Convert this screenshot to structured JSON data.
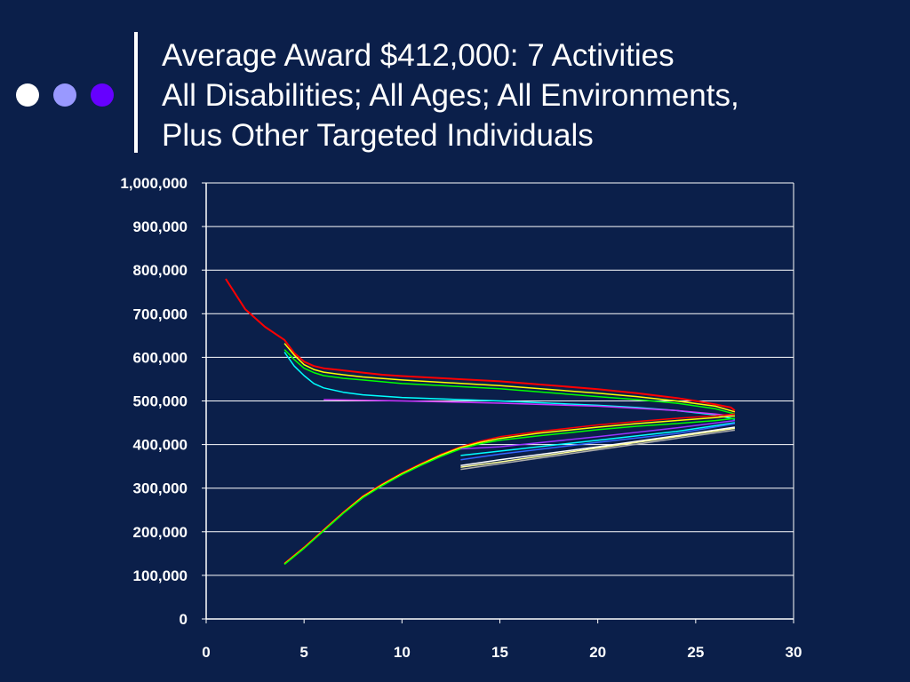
{
  "slide": {
    "title_lines": [
      "Average Award $412,000: 7 Activities",
      "All Disabilities; All Ages; All Environments,",
      "Plus Other Targeted Individuals"
    ],
    "bullet_colors": [
      "#ffffff",
      "#9999ff",
      "#6600ff"
    ],
    "background": "#0b1f4a"
  },
  "chart_data": {
    "type": "line",
    "title": "",
    "xlabel": "",
    "ylabel": "",
    "xlim": [
      0,
      30
    ],
    "ylim": [
      0,
      1000000
    ],
    "xticks": [
      0,
      5,
      10,
      15,
      20,
      25,
      30
    ],
    "yticks": [
      0,
      100000,
      200000,
      300000,
      400000,
      500000,
      600000,
      700000,
      800000,
      900000,
      1000000
    ],
    "xtick_labels": [
      "0",
      "5",
      "10",
      "15",
      "20",
      "25",
      "30"
    ],
    "ytick_labels": [
      "0",
      "100,000",
      "200,000",
      "300,000",
      "400,000",
      "500,000",
      "600,000",
      "700,000",
      "800,000",
      "900,000",
      "1,000,000"
    ],
    "grid": {
      "horizontal": true,
      "vertical": false,
      "color": "#ffffff"
    },
    "legend": "none",
    "series": [
      {
        "color": "#ff0000",
        "points": [
          [
            1,
            780000
          ],
          [
            2,
            710000
          ],
          [
            3,
            670000
          ],
          [
            4,
            640000
          ],
          [
            4.5,
            610000
          ],
          [
            5,
            590000
          ],
          [
            5.5,
            580000
          ],
          [
            6,
            575000
          ],
          [
            7,
            570000
          ],
          [
            8,
            565000
          ],
          [
            9,
            560000
          ],
          [
            10,
            557000
          ],
          [
            15,
            545000
          ],
          [
            20,
            527000
          ],
          [
            22,
            518000
          ],
          [
            24,
            507000
          ],
          [
            25,
            500000
          ],
          [
            26,
            492000
          ],
          [
            26.8,
            485000
          ],
          [
            27,
            478000
          ]
        ]
      },
      {
        "color": "#ffff00",
        "points": [
          [
            4,
            632000
          ],
          [
            4.5,
            605000
          ],
          [
            5,
            583000
          ],
          [
            5.5,
            572000
          ],
          [
            6,
            566000
          ],
          [
            7,
            560000
          ],
          [
            8,
            555000
          ],
          [
            10,
            548000
          ],
          [
            15,
            535000
          ],
          [
            20,
            518000
          ],
          [
            22,
            510000
          ],
          [
            24,
            500000
          ],
          [
            26,
            488000
          ],
          [
            27,
            475000
          ]
        ]
      },
      {
        "color": "#00ff00",
        "points": [
          [
            4,
            618000
          ],
          [
            4.5,
            595000
          ],
          [
            5,
            575000
          ],
          [
            5.5,
            565000
          ],
          [
            6,
            558000
          ],
          [
            7,
            552000
          ],
          [
            8,
            548000
          ],
          [
            10,
            540000
          ],
          [
            15,
            528000
          ],
          [
            20,
            510000
          ],
          [
            22,
            503000
          ],
          [
            24,
            495000
          ],
          [
            26,
            482000
          ],
          [
            27,
            470000
          ]
        ]
      },
      {
        "color": "#00ffff",
        "points": [
          [
            4,
            612000
          ],
          [
            4.5,
            580000
          ],
          [
            5,
            558000
          ],
          [
            5.5,
            540000
          ],
          [
            6,
            530000
          ],
          [
            7,
            520000
          ],
          [
            8,
            514000
          ],
          [
            10,
            508000
          ],
          [
            15,
            500000
          ],
          [
            20,
            490000
          ],
          [
            22,
            485000
          ],
          [
            24,
            478000
          ],
          [
            26,
            468000
          ],
          [
            27,
            458000
          ]
        ]
      },
      {
        "color": "#cc33ff",
        "points": [
          [
            6,
            503000
          ],
          [
            10,
            500000
          ],
          [
            15,
            495000
          ],
          [
            20,
            488000
          ],
          [
            24,
            478000
          ],
          [
            26,
            470000
          ],
          [
            27,
            465000
          ]
        ]
      },
      {
        "color": "#ff0000",
        "points": [
          [
            4,
            128000
          ],
          [
            5,
            165000
          ],
          [
            6,
            205000
          ],
          [
            7,
            245000
          ],
          [
            8,
            282000
          ],
          [
            9,
            310000
          ],
          [
            10,
            335000
          ],
          [
            11,
            357000
          ],
          [
            12,
            378000
          ],
          [
            13,
            395000
          ],
          [
            14,
            408000
          ],
          [
            15,
            418000
          ],
          [
            17,
            430000
          ],
          [
            20,
            445000
          ],
          [
            22,
            453000
          ],
          [
            24,
            460000
          ],
          [
            26,
            466000
          ],
          [
            27,
            470000
          ]
        ]
      },
      {
        "color": "#ffff00",
        "points": [
          [
            4,
            126000
          ],
          [
            5,
            163000
          ],
          [
            6,
            203000
          ],
          [
            7,
            243000
          ],
          [
            8,
            280000
          ],
          [
            9,
            308000
          ],
          [
            10,
            333000
          ],
          [
            11,
            355000
          ],
          [
            12,
            376000
          ],
          [
            13,
            393000
          ],
          [
            14,
            405000
          ],
          [
            15,
            414000
          ],
          [
            17,
            426000
          ],
          [
            20,
            440000
          ],
          [
            22,
            448000
          ],
          [
            24,
            455000
          ],
          [
            26,
            462000
          ],
          [
            27,
            466000
          ]
        ]
      },
      {
        "color": "#00ff00",
        "points": [
          [
            4,
            125000
          ],
          [
            5,
            162000
          ],
          [
            6,
            202000
          ],
          [
            7,
            242000
          ],
          [
            8,
            278000
          ],
          [
            9,
            306000
          ],
          [
            10,
            331000
          ],
          [
            11,
            353000
          ],
          [
            12,
            373000
          ],
          [
            13,
            390000
          ],
          [
            14,
            402000
          ],
          [
            15,
            410000
          ],
          [
            17,
            420000
          ],
          [
            20,
            434000
          ],
          [
            22,
            442000
          ],
          [
            24,
            448000
          ],
          [
            26,
            455000
          ],
          [
            27,
            460000
          ]
        ]
      },
      {
        "color": "#9933ff",
        "points": [
          [
            13,
            390000
          ],
          [
            15,
            395000
          ],
          [
            20,
            418000
          ],
          [
            24,
            438000
          ],
          [
            27,
            455000
          ]
        ]
      },
      {
        "color": "#00ffff",
        "points": [
          [
            13,
            375000
          ],
          [
            15,
            385000
          ],
          [
            20,
            410000
          ],
          [
            24,
            430000
          ],
          [
            27,
            450000
          ]
        ]
      },
      {
        "color": "#3366ff",
        "points": [
          [
            13,
            365000
          ],
          [
            15,
            378000
          ],
          [
            20,
            405000
          ],
          [
            24,
            425000
          ],
          [
            27,
            448000
          ]
        ]
      },
      {
        "color": "#ffffff",
        "points": [
          [
            13,
            352000
          ],
          [
            15,
            365000
          ],
          [
            20,
            395000
          ],
          [
            24,
            420000
          ],
          [
            27,
            440000
          ]
        ]
      },
      {
        "color": "#ffff99",
        "points": [
          [
            13,
            348000
          ],
          [
            15,
            360000
          ],
          [
            20,
            392000
          ],
          [
            24,
            418000
          ],
          [
            27,
            437000
          ]
        ]
      },
      {
        "color": "#aaaaaa",
        "points": [
          [
            13,
            343000
          ],
          [
            15,
            356000
          ],
          [
            20,
            388000
          ],
          [
            24,
            414000
          ],
          [
            27,
            433000
          ]
        ]
      }
    ]
  }
}
